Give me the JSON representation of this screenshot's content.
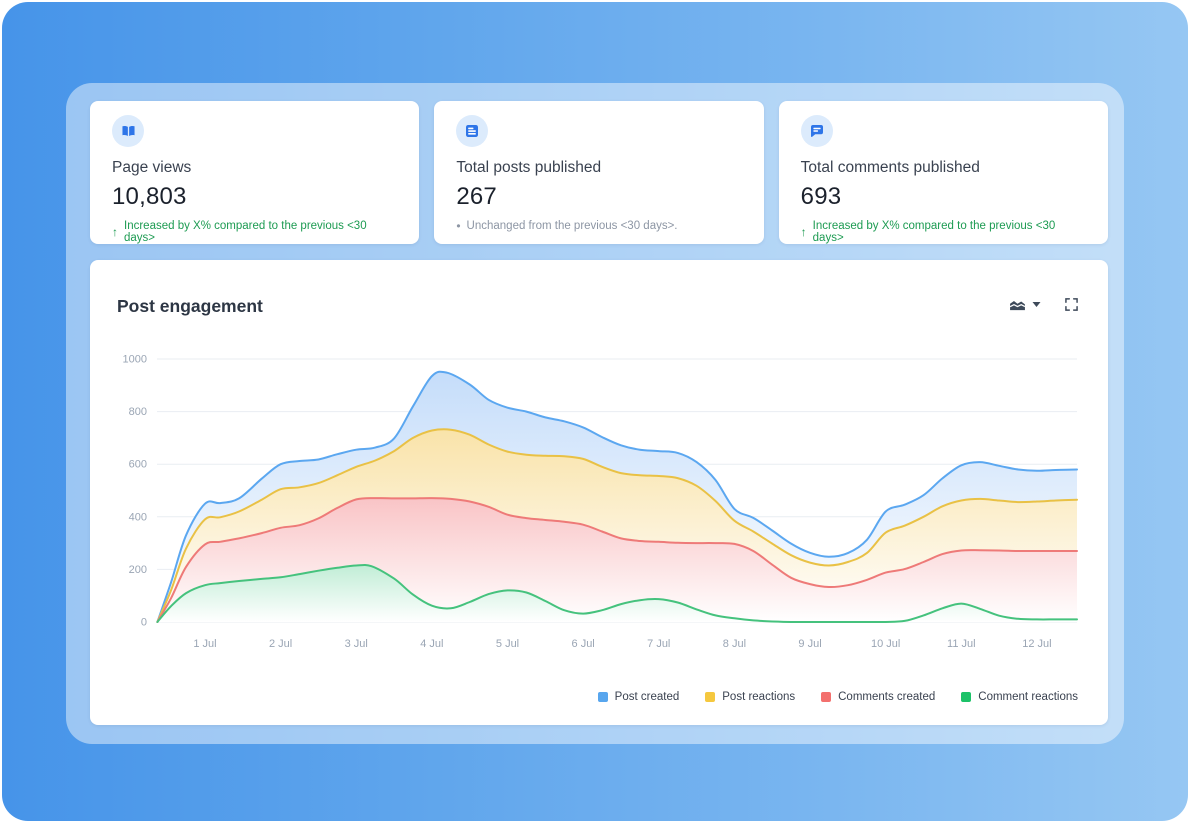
{
  "colors": {
    "accent": "#2e75e8",
    "positive": "#1d9b52",
    "neutral": "#8d96a4",
    "icon_dark": "#3e4a5a",
    "axis_text": "#9aa5b4",
    "gridline": "#e9edf2"
  },
  "cards": [
    {
      "icon": "book-open-icon",
      "label": "Page views",
      "value": "10,803",
      "delta": {
        "type": "up",
        "icon": "↑",
        "text": "Increased by X% compared to the previous <30 days>"
      }
    },
    {
      "icon": "document-icon",
      "label": "Total posts published",
      "value": "267",
      "delta": {
        "type": "neutral",
        "icon": "•",
        "text": "Unchanged from the previous <30 days>."
      }
    },
    {
      "icon": "chat-icon",
      "label": "Total comments published",
      "value": "693",
      "delta": {
        "type": "up",
        "icon": "↑",
        "text": "Increased by X% compared to the previous <30 days>"
      }
    }
  ],
  "chart_card": {
    "title": "Post engagement"
  },
  "chart_data": {
    "type": "area",
    "title": "Post engagement",
    "x_unit": "day of July",
    "x_ticks": [
      "1 Jul",
      "2 Jul",
      "3 Jul",
      "4 Jul",
      "5 Jul",
      "6 Jul",
      "7 Jul",
      "8 Jul",
      "9 Jul",
      "10 Jul",
      "11 Jul",
      "12 Jul"
    ],
    "y_ticks": [
      0,
      200,
      400,
      600,
      800,
      1000
    ],
    "ylim": [
      0,
      1000
    ],
    "grid": "horizontal",
    "legend_position": "bottom-right",
    "series": [
      {
        "name": "Post created",
        "color": "#58a6ee",
        "line": "#5ba7f0",
        "fill": "#c5ddfa",
        "points": [
          [
            0.37,
            0
          ],
          [
            0.55,
            150
          ],
          [
            0.75,
            330
          ],
          [
            1,
            450
          ],
          [
            1.2,
            452
          ],
          [
            1.45,
            470
          ],
          [
            1.75,
            545
          ],
          [
            2,
            600
          ],
          [
            2.25,
            612
          ],
          [
            2.5,
            618
          ],
          [
            2.75,
            638
          ],
          [
            3,
            655
          ],
          [
            3.25,
            663
          ],
          [
            3.5,
            698
          ],
          [
            3.75,
            820
          ],
          [
            4,
            935
          ],
          [
            4.2,
            948
          ],
          [
            4.5,
            903
          ],
          [
            4.75,
            845
          ],
          [
            5,
            815
          ],
          [
            5.25,
            800
          ],
          [
            5.5,
            778
          ],
          [
            5.75,
            763
          ],
          [
            6,
            740
          ],
          [
            6.25,
            703
          ],
          [
            6.5,
            672
          ],
          [
            6.75,
            655
          ],
          [
            7,
            650
          ],
          [
            7.25,
            643
          ],
          [
            7.5,
            608
          ],
          [
            7.75,
            540
          ],
          [
            8,
            430
          ],
          [
            8.25,
            396
          ],
          [
            8.5,
            348
          ],
          [
            8.75,
            298
          ],
          [
            9,
            263
          ],
          [
            9.25,
            248
          ],
          [
            9.5,
            262
          ],
          [
            9.75,
            312
          ],
          [
            10,
            420
          ],
          [
            10.25,
            446
          ],
          [
            10.5,
            482
          ],
          [
            10.75,
            546
          ],
          [
            11,
            596
          ],
          [
            11.25,
            608
          ],
          [
            11.5,
            594
          ],
          [
            11.75,
            580
          ],
          [
            12,
            575
          ],
          [
            12.25,
            578
          ],
          [
            12.53,
            580
          ]
        ]
      },
      {
        "name": "Post reactions",
        "color": "#f5c83f",
        "line": "#e9c145",
        "fill": "#f9e3a9",
        "points": [
          [
            0.37,
            0
          ],
          [
            0.55,
            120
          ],
          [
            0.75,
            280
          ],
          [
            1,
            390
          ],
          [
            1.2,
            398
          ],
          [
            1.45,
            420
          ],
          [
            1.75,
            465
          ],
          [
            2,
            505
          ],
          [
            2.25,
            512
          ],
          [
            2.5,
            528
          ],
          [
            2.75,
            558
          ],
          [
            3,
            590
          ],
          [
            3.25,
            614
          ],
          [
            3.5,
            650
          ],
          [
            3.75,
            700
          ],
          [
            4,
            728
          ],
          [
            4.25,
            731
          ],
          [
            4.5,
            712
          ],
          [
            4.75,
            675
          ],
          [
            5,
            648
          ],
          [
            5.25,
            636
          ],
          [
            5.5,
            632
          ],
          [
            5.75,
            630
          ],
          [
            6,
            620
          ],
          [
            6.25,
            590
          ],
          [
            6.5,
            566
          ],
          [
            6.75,
            558
          ],
          [
            7,
            555
          ],
          [
            7.25,
            547
          ],
          [
            7.5,
            518
          ],
          [
            7.75,
            460
          ],
          [
            8,
            385
          ],
          [
            8.25,
            344
          ],
          [
            8.5,
            298
          ],
          [
            8.75,
            254
          ],
          [
            9,
            226
          ],
          [
            9.25,
            215
          ],
          [
            9.5,
            228
          ],
          [
            9.75,
            262
          ],
          [
            10,
            340
          ],
          [
            10.25,
            366
          ],
          [
            10.5,
            400
          ],
          [
            10.75,
            440
          ],
          [
            11,
            462
          ],
          [
            11.25,
            468
          ],
          [
            11.5,
            462
          ],
          [
            11.75,
            456
          ],
          [
            12,
            458
          ],
          [
            12.25,
            462
          ],
          [
            12.53,
            465
          ]
        ]
      },
      {
        "name": "Comments created",
        "color": "#f3706e",
        "line": "#ee7a78",
        "fill": "#f9c4c6",
        "points": [
          [
            0.37,
            0
          ],
          [
            0.55,
            90
          ],
          [
            0.75,
            210
          ],
          [
            1,
            295
          ],
          [
            1.2,
            305
          ],
          [
            1.45,
            318
          ],
          [
            1.75,
            338
          ],
          [
            2,
            358
          ],
          [
            2.25,
            368
          ],
          [
            2.5,
            394
          ],
          [
            2.75,
            434
          ],
          [
            3,
            466
          ],
          [
            3.25,
            471
          ],
          [
            3.5,
            470
          ],
          [
            3.75,
            470
          ],
          [
            4,
            471
          ],
          [
            4.25,
            468
          ],
          [
            4.5,
            458
          ],
          [
            4.75,
            438
          ],
          [
            5,
            408
          ],
          [
            5.25,
            395
          ],
          [
            5.5,
            388
          ],
          [
            5.75,
            381
          ],
          [
            6,
            370
          ],
          [
            6.25,
            344
          ],
          [
            6.5,
            318
          ],
          [
            6.75,
            308
          ],
          [
            7,
            305
          ],
          [
            7.25,
            301
          ],
          [
            7.5,
            300
          ],
          [
            7.75,
            300
          ],
          [
            8,
            297
          ],
          [
            8.25,
            270
          ],
          [
            8.5,
            218
          ],
          [
            8.75,
            168
          ],
          [
            9,
            144
          ],
          [
            9.25,
            133
          ],
          [
            9.5,
            140
          ],
          [
            9.75,
            160
          ],
          [
            10,
            188
          ],
          [
            10.25,
            201
          ],
          [
            10.5,
            228
          ],
          [
            10.75,
            258
          ],
          [
            11,
            272
          ],
          [
            11.25,
            273
          ],
          [
            11.5,
            272
          ],
          [
            11.75,
            270
          ],
          [
            12,
            270
          ],
          [
            12.25,
            270
          ],
          [
            12.53,
            270
          ]
        ]
      },
      {
        "name": "Comment reactions",
        "color": "#1cc268",
        "line": "#45c27d",
        "fill": "#c1edd6",
        "points": [
          [
            0.37,
            0
          ],
          [
            0.55,
            60
          ],
          [
            0.75,
            110
          ],
          [
            1,
            140
          ],
          [
            1.2,
            148
          ],
          [
            1.45,
            156
          ],
          [
            1.75,
            164
          ],
          [
            2,
            170
          ],
          [
            2.25,
            182
          ],
          [
            2.5,
            195
          ],
          [
            2.75,
            206
          ],
          [
            3,
            215
          ],
          [
            3.2,
            212
          ],
          [
            3.5,
            165
          ],
          [
            3.75,
            104
          ],
          [
            4,
            62
          ],
          [
            4.25,
            52
          ],
          [
            4.5,
            76
          ],
          [
            4.75,
            106
          ],
          [
            5,
            120
          ],
          [
            5.25,
            112
          ],
          [
            5.5,
            80
          ],
          [
            5.75,
            45
          ],
          [
            6,
            32
          ],
          [
            6.25,
            45
          ],
          [
            6.5,
            68
          ],
          [
            6.75,
            83
          ],
          [
            7,
            87
          ],
          [
            7.25,
            74
          ],
          [
            7.5,
            48
          ],
          [
            7.75,
            25
          ],
          [
            8,
            14
          ],
          [
            8.25,
            6
          ],
          [
            8.5,
            2
          ],
          [
            8.75,
            0
          ],
          [
            9,
            0
          ],
          [
            9.25,
            0
          ],
          [
            9.5,
            0
          ],
          [
            9.75,
            0
          ],
          [
            10,
            0
          ],
          [
            10.25,
            4
          ],
          [
            10.5,
            25
          ],
          [
            10.75,
            52
          ],
          [
            11,
            70
          ],
          [
            11.25,
            50
          ],
          [
            11.5,
            24
          ],
          [
            11.75,
            12
          ],
          [
            12,
            10
          ],
          [
            12.25,
            10
          ],
          [
            12.53,
            10
          ]
        ]
      }
    ]
  }
}
